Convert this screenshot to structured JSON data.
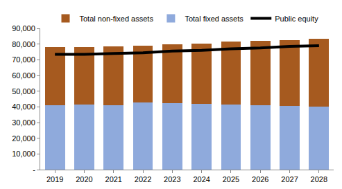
{
  "chart_data": {
    "type": "bar",
    "stacked": true,
    "legend": "top",
    "grid": false,
    "categories": [
      "2019",
      "2020",
      "2021",
      "2022",
      "2023",
      "2024",
      "2025",
      "2026",
      "2027",
      "2028"
    ],
    "series": [
      {
        "name": "Total non-fixed assets",
        "color": "#a65a1f",
        "type": "bar",
        "values": [
          37000,
          36500,
          37500,
          36000,
          37500,
          38500,
          40000,
          41000,
          42000,
          43500
        ]
      },
      {
        "name": "Total fixed assets",
        "color": "#8faadc",
        "type": "bar",
        "values": [
          41000,
          41500,
          41000,
          43000,
          42500,
          42000,
          41500,
          41000,
          40500,
          40000
        ]
      },
      {
        "name": "Public equity",
        "color": "#000000",
        "type": "line",
        "values": [
          73500,
          73500,
          74000,
          74500,
          75500,
          76000,
          77000,
          77500,
          78500,
          79000
        ]
      }
    ],
    "ylim": [
      0,
      90000
    ],
    "yticks": [
      {
        "value": 0,
        "label": "-"
      },
      {
        "value": 10000,
        "label": "10,000"
      },
      {
        "value": 20000,
        "label": "20,000"
      },
      {
        "value": 30000,
        "label": "30,000"
      },
      {
        "value": 40000,
        "label": "40,000"
      },
      {
        "value": 50000,
        "label": "50,000"
      },
      {
        "value": 60000,
        "label": "60,000"
      },
      {
        "value": 70000,
        "label": "70,000"
      },
      {
        "value": 80000,
        "label": "80,000"
      },
      {
        "value": 90000,
        "label": "90,000"
      }
    ]
  }
}
